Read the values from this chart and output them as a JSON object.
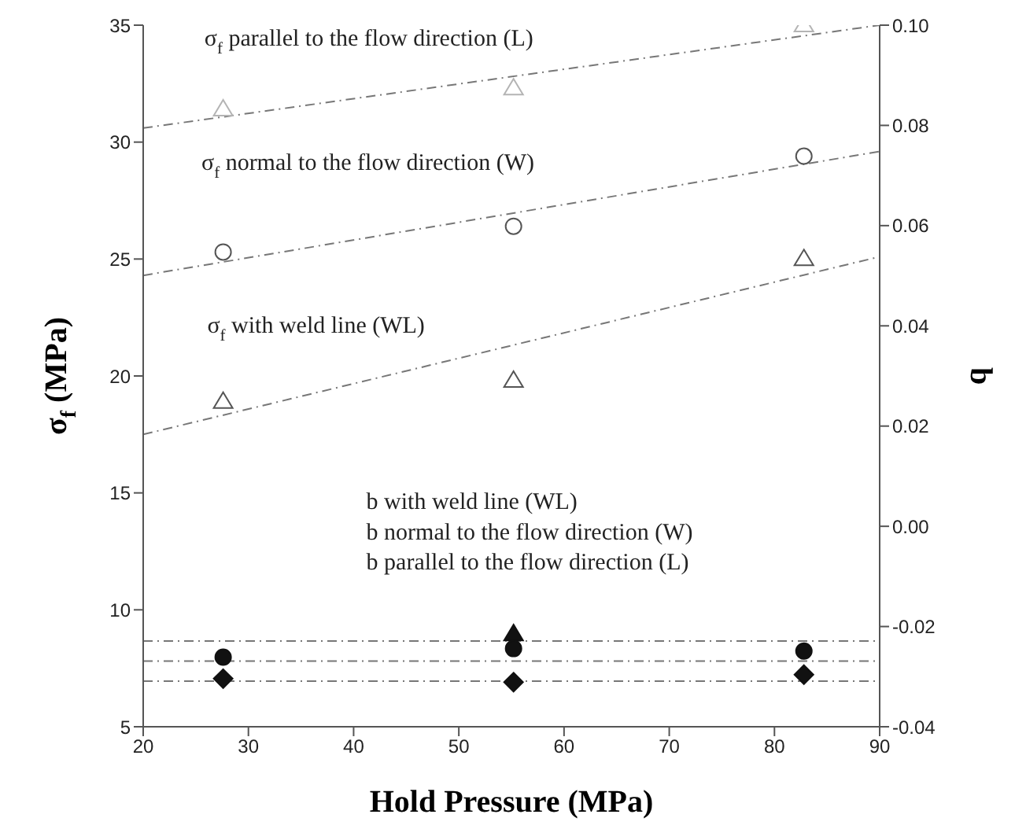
{
  "chart_data": {
    "type": "scatter",
    "xlabel": "Hold Pressure (MPa)",
    "ylabel": "σ$_{f}$ (MPa)",
    "y2label": "b",
    "xlim": [
      20,
      90
    ],
    "xticks": [
      20,
      30,
      40,
      50,
      60,
      70,
      80,
      90
    ],
    "ylim": [
      5,
      35
    ],
    "yticks": [
      5,
      10,
      15,
      20,
      25,
      30,
      35
    ],
    "y2lim": [
      -0.04,
      0.1
    ],
    "y2ticks": [
      {
        "value": -0.04,
        "label": "-0.04"
      },
      {
        "value": -0.02,
        "label": "-0.02"
      },
      {
        "value": 0,
        "label": "0.00"
      },
      {
        "value": 0.02,
        "label": "0.02"
      },
      {
        "value": 0.04,
        "label": "0.04"
      },
      {
        "value": 0.06,
        "label": "0.06"
      },
      {
        "value": 0.08,
        "label": "0.08"
      },
      {
        "value": 0.1,
        "label": "0.10"
      }
    ],
    "grid": false,
    "series": [
      {
        "x": [
          27.6,
          55.2,
          82.8
        ],
        "values": [
          31.4,
          32.3,
          35.0
        ],
        "color": "#b4b4b4",
        "marker": "triangle"
      },
      {
        "x": [
          27.6,
          55.2,
          82.8
        ],
        "values": [
          25.3,
          26.4,
          29.4
        ],
        "color": "#555555",
        "marker": "circle"
      },
      {
        "x": [
          27.6,
          55.2,
          82.8
        ],
        "values": [
          18.9,
          19.8,
          25.0
        ],
        "color": "#555555",
        "marker": "triangle"
      },
      {
        "type": "line",
        "x": [
          20,
          90
        ],
        "values": [
          30.6,
          35.0
        ],
        "color": "#777777",
        "line_style": "dashed",
        "marker": "none"
      },
      {
        "type": "line",
        "x": [
          20,
          90
        ],
        "values": [
          24.3,
          29.6
        ],
        "color": "#777777",
        "line_style": "dashed",
        "marker": "none"
      },
      {
        "type": "line",
        "x": [
          20,
          90
        ],
        "values": [
          17.5,
          25.1
        ],
        "color": "#777777",
        "line_style": "dashed",
        "marker": "none"
      },
      {
        "type": "line",
        "axis": "y2",
        "x": [
          20,
          90
        ],
        "values": [
          -0.0229,
          -0.0229
        ],
        "color": "#777777",
        "line_style": "dashed",
        "marker": "none"
      },
      {
        "type": "line",
        "axis": "y2",
        "x": [
          20,
          90
        ],
        "values": [
          -0.0269,
          -0.0269
        ],
        "color": "#777777",
        "line_style": "dashed",
        "marker": "none"
      },
      {
        "type": "line",
        "axis": "y2",
        "x": [
          20,
          90
        ],
        "values": [
          -0.0309,
          -0.0309
        ],
        "color": "#777777",
        "line_style": "dashed",
        "marker": "none"
      },
      {
        "axis": "y2",
        "x": [
          55.2
        ],
        "values": [
          -0.0215
        ],
        "color": "#111111",
        "marker": "triangle"
      },
      {
        "axis": "y2",
        "x": [
          27.6,
          55.2,
          82.8
        ],
        "values": [
          -0.0261,
          -0.0244,
          -0.0249
        ],
        "color": "#111111",
        "marker": "circle"
      },
      {
        "axis": "y2",
        "x": [
          27.6,
          55.2,
          82.8
        ],
        "values": [
          -0.0304,
          -0.0311,
          -0.0296
        ],
        "color": "#111111",
        "marker": "diamond"
      }
    ],
    "annotations": [
      "σ$_{f}$ parallel to the flow direction (L)",
      "σ$_{f}$ normal to the flow direction (W)",
      "σ$_{f}$ with weld line (WL)",
      "b with weld line (WL)",
      "b normal to the flow direction (W)",
      "b parallel to the flow direction (L)"
    ]
  }
}
